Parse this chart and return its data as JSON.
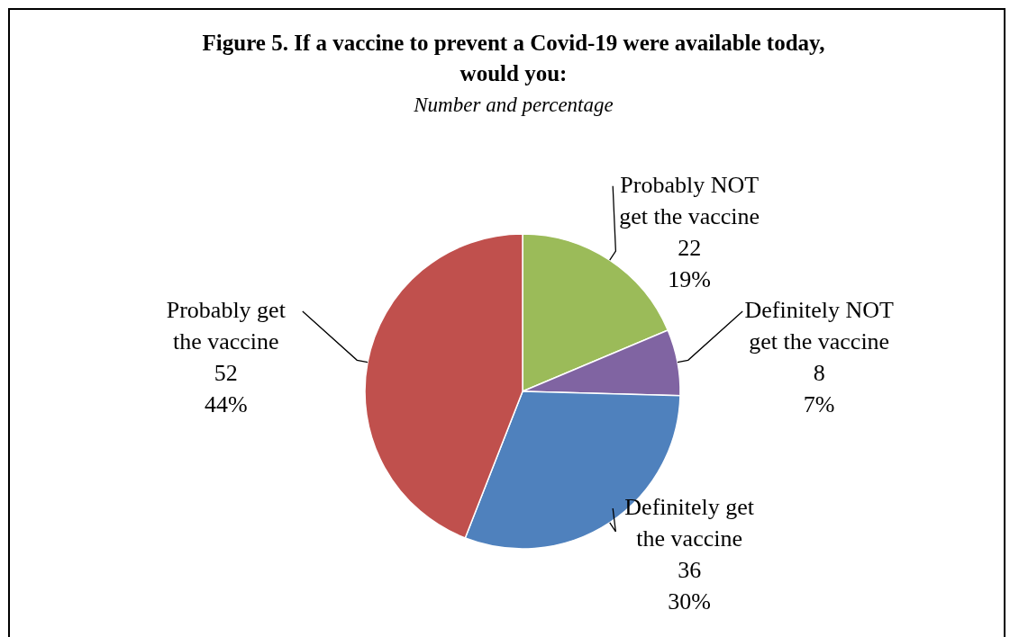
{
  "chart_data": {
    "type": "pie",
    "title": "Figure 5. If  a vaccine to prevent a Covid-19 were available today, would you:",
    "subtitle": "Number and percentage",
    "categories": [
      "Probably NOT get the vaccine",
      "Definitely NOT get the vaccine",
      "Definitely get the vaccine",
      "Probably get the vaccine"
    ],
    "values": [
      22,
      8,
      36,
      52
    ],
    "colors": [
      "#9bbb59",
      "#8064a2",
      "#4f81bd",
      "#c0504d"
    ],
    "value_labels": [
      "22 19%",
      "8 7%",
      "36 30%",
      "52 44%"
    ]
  }
}
